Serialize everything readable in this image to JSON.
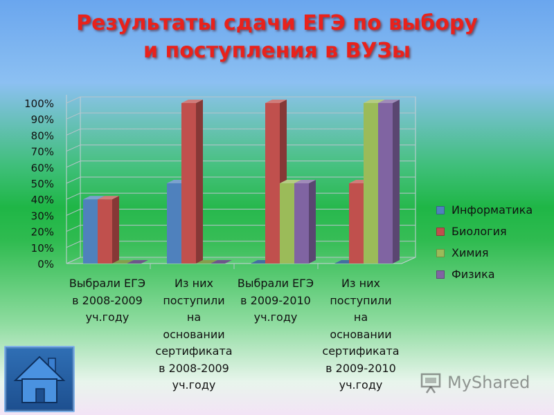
{
  "slide": {
    "title_line1": "Результаты сдачи ЕГЭ по выбору",
    "title_line2": "и поступления в ВУЗы",
    "watermark_text": "MyShared",
    "home_button_icon": "house-icon"
  },
  "chart_data": {
    "type": "bar",
    "variant": "3d-clustered-column",
    "categories": [
      [
        "Выбрали ЕГЭ",
        "в 2008-2009",
        "уч.году"
      ],
      [
        "Из них",
        "поступили",
        "на",
        "основании",
        "сертификата",
        "в 2008-2009",
        "уч.году"
      ],
      [
        "Выбрали ЕГЭ",
        "в 2009-2010",
        "уч.году"
      ],
      [
        "Из них",
        "поступили",
        "на",
        "основании",
        "сертификата",
        "в 2009-2010",
        "уч.году"
      ]
    ],
    "series": [
      {
        "name": "Информатика",
        "color": "#4f81bd",
        "values": [
          40,
          50,
          0,
          0
        ]
      },
      {
        "name": "Биология",
        "color": "#c0504d",
        "values": [
          40,
          100,
          100,
          50
        ]
      },
      {
        "name": "Химия",
        "color": "#9bbb59",
        "values": [
          0,
          0,
          50,
          100
        ]
      },
      {
        "name": "Физика",
        "color": "#8064a2",
        "values": [
          0,
          0,
          50,
          100
        ]
      }
    ],
    "y_ticks": [
      "0%",
      "10%",
      "20%",
      "30%",
      "40%",
      "50%",
      "60%",
      "70%",
      "80%",
      "90%",
      "100%"
    ],
    "ylim": [
      0,
      100
    ],
    "grid": true,
    "legend_position": "right"
  }
}
